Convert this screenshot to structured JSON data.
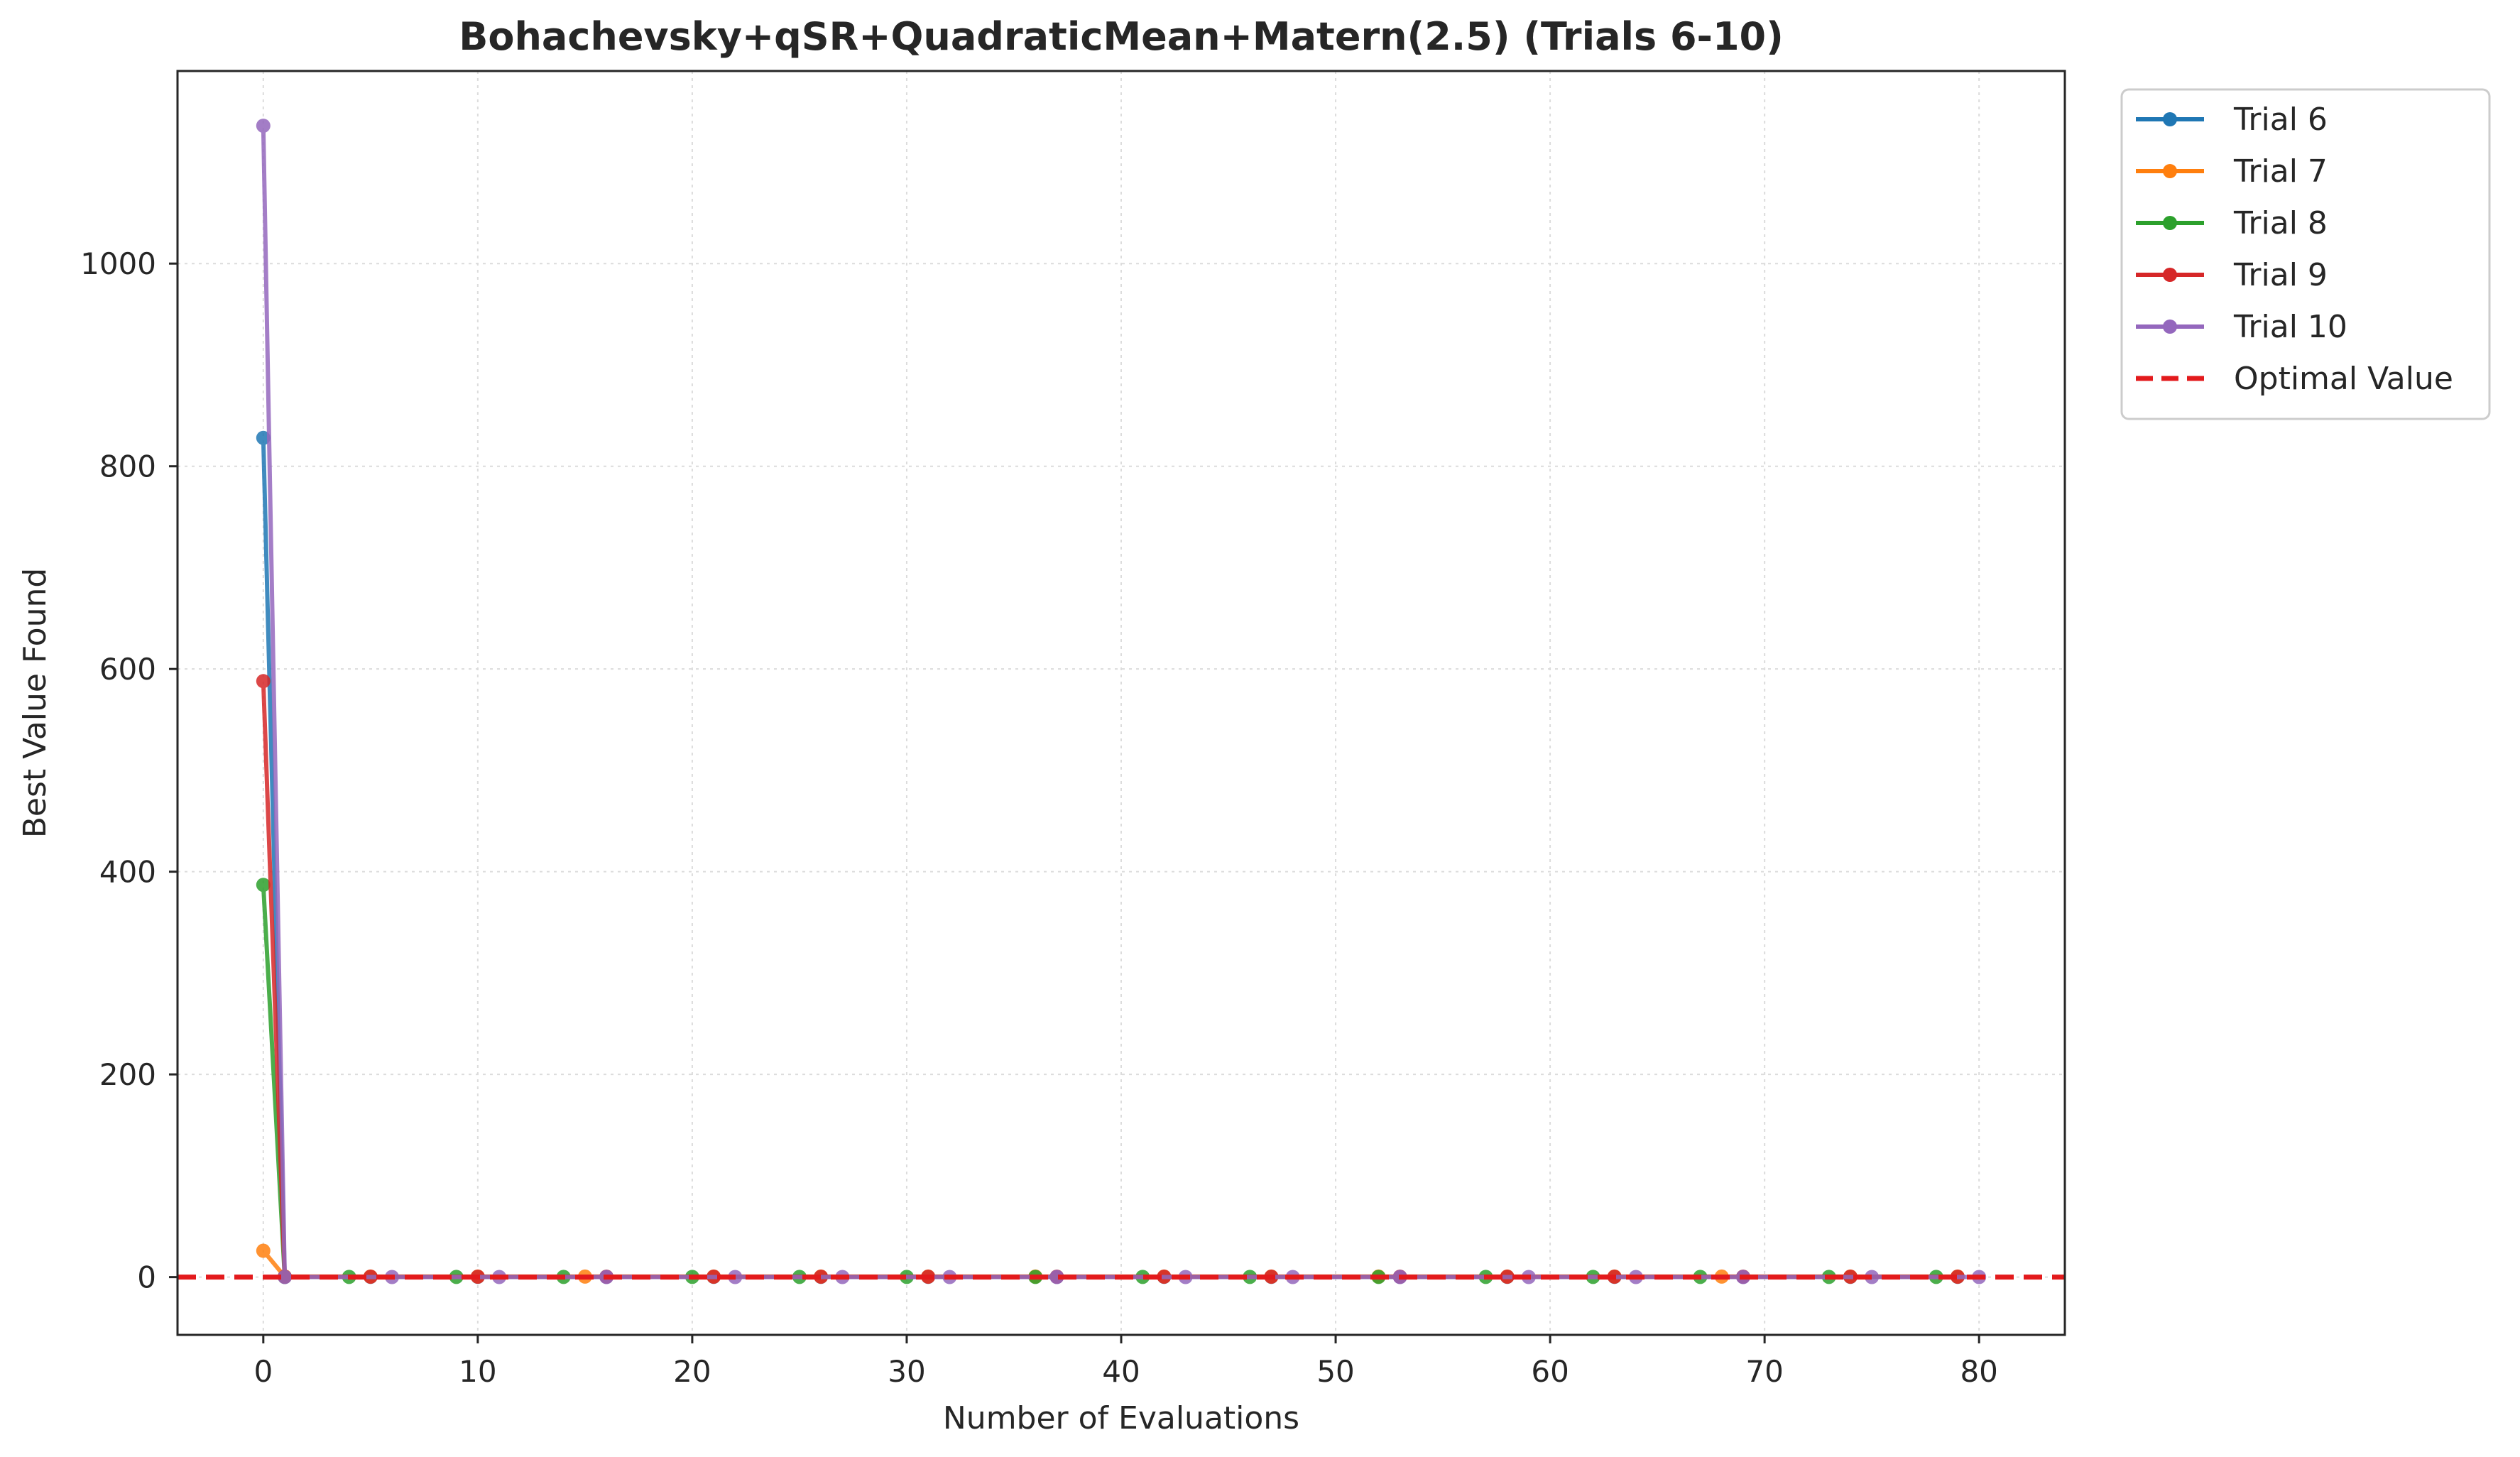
{
  "chart_data": {
    "type": "line",
    "title": "Bohachevsky+qSR+QuadraticMean+Matern(2.5) (Trials 6-10)",
    "xlabel": "Number of Evaluations",
    "ylabel": "Best Value Found",
    "xlim": [
      -4,
      84
    ],
    "ylim": [
      -57,
      1190
    ],
    "xticks": [
      0,
      10,
      20,
      30,
      40,
      50,
      60,
      70,
      80
    ],
    "yticks": [
      0,
      200,
      400,
      600,
      800,
      1000
    ],
    "grid": true,
    "legend_position": "outside-upper-right",
    "series": [
      {
        "name": "Trial 6",
        "color": "#1f77b4",
        "x": [
          0,
          1,
          5,
          10,
          16,
          21,
          26,
          31,
          37,
          42,
          47,
          53,
          58,
          63,
          69,
          74,
          79
        ],
        "y": [
          828,
          0.3,
          0.3,
          0.3,
          0.3,
          0.3,
          0.3,
          0.3,
          0.3,
          0.3,
          0.3,
          0.3,
          0.3,
          0.3,
          0.3,
          0.3,
          0.3
        ]
      },
      {
        "name": "Trial 7",
        "color": "#ff7f0e",
        "x": [
          0,
          1,
          5,
          10,
          15,
          21,
          26,
          31,
          36,
          42,
          47,
          52,
          58,
          63,
          68,
          74,
          79
        ],
        "y": [
          26,
          0.5,
          0.5,
          0.5,
          0.5,
          0.5,
          0.5,
          0.5,
          0.5,
          0.5,
          0.5,
          0.5,
          0.5,
          0.5,
          0.5,
          0.5,
          0.5
        ]
      },
      {
        "name": "Trial 8",
        "color": "#2ca02c",
        "x": [
          0,
          1,
          4,
          9,
          14,
          20,
          25,
          30,
          36,
          41,
          46,
          52,
          57,
          62,
          67,
          73,
          78
        ],
        "y": [
          387,
          0.2,
          0.2,
          0.2,
          0.2,
          0.2,
          0.2,
          0.2,
          0.2,
          0.2,
          0.2,
          0.2,
          0.2,
          0.2,
          0.2,
          0.2,
          0.2
        ]
      },
      {
        "name": "Trial 9",
        "color": "#d62728",
        "x": [
          0,
          1,
          5,
          10,
          16,
          21,
          26,
          31,
          37,
          42,
          47,
          53,
          58,
          63,
          69,
          74,
          79
        ],
        "y": [
          588,
          0.4,
          0.4,
          0.4,
          0.4,
          0.4,
          0.4,
          0.4,
          0.4,
          0.4,
          0.4,
          0.4,
          0.4,
          0.4,
          0.4,
          0.4,
          0.4
        ]
      },
      {
        "name": "Trial 10",
        "color": "#9467bd",
        "x": [
          0,
          1,
          6,
          11,
          16,
          22,
          27,
          32,
          37,
          43,
          48,
          53,
          59,
          64,
          69,
          75,
          80
        ],
        "y": [
          1136,
          0.1,
          0.1,
          0.1,
          0.1,
          0.1,
          0.1,
          0.1,
          0.1,
          0.1,
          0.1,
          0.1,
          0.1,
          0.1,
          0.1,
          0.1,
          0.1
        ]
      }
    ],
    "reference_line": {
      "name": "Optimal Value",
      "y": 0,
      "color": "#e31a1c",
      "style": "dashed"
    }
  }
}
